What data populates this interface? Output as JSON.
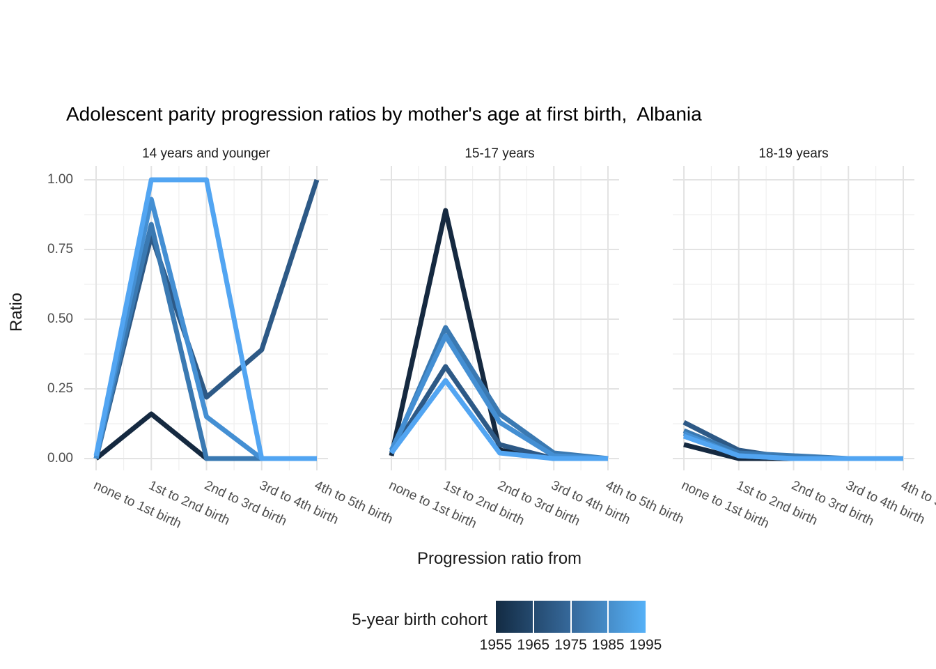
{
  "title": "Adolescent parity progression ratios by mother's age at first birth,  Albania",
  "y_axis": {
    "title": "Ratio",
    "tick_labels": [
      "1.00",
      "0.75",
      "0.50",
      "0.25",
      "0.00"
    ],
    "tick_values": [
      1.0,
      0.75,
      0.5,
      0.25,
      0.0
    ]
  },
  "x_axis": {
    "title": "Progression ratio from"
  },
  "legend": {
    "title": "5-year birth cohort",
    "labels": [
      "1955",
      "1965",
      "1975",
      "1985",
      "1995"
    ],
    "gradient_low": "#132B43",
    "gradient_mid": "#36699B",
    "gradient_high": "#56B1F7"
  },
  "chart_data": {
    "type": "line",
    "title": "Adolescent parity progression ratios by mother's age at first birth,  Albania",
    "xlabel": "Progression ratio from",
    "ylabel": "Ratio",
    "ylim": [
      0,
      1
    ],
    "grid": "on",
    "legend_position": "bottom",
    "colorbar": {
      "label": "5-year birth cohort",
      "min": 1955,
      "max": 1995,
      "low_color": "#132B43",
      "high_color": "#56B1F7"
    },
    "categories": [
      "none to 1st birth",
      "1st to 2nd birth",
      "2nd to 3rd birth",
      "3rd to 4th birth",
      "4th to 5th birth"
    ],
    "facets": [
      {
        "label": "14 years and younger",
        "series": [
          {
            "name": "1955",
            "color": "#152940",
            "values": [
              0.0,
              0.16,
              0.0,
              0.0,
              0.0
            ]
          },
          {
            "name": "1965",
            "color": "#2D5986",
            "values": [
              0.0,
              0.8,
              0.22,
              0.39,
              1.0
            ]
          },
          {
            "name": "1975",
            "color": "#3A79B2",
            "values": [
              0.0,
              0.84,
              0.0,
              0.0,
              0.0
            ]
          },
          {
            "name": "1985",
            "color": "#448FD3",
            "values": [
              0.0,
              0.93,
              0.15,
              0.0,
              0.0
            ]
          },
          {
            "name": "1995",
            "color": "#52A5F2",
            "values": [
              0.01,
              1.0,
              1.0,
              0.0,
              0.0
            ]
          }
        ]
      },
      {
        "label": "15-17 years",
        "series": [
          {
            "name": "1955",
            "color": "#152940",
            "values": [
              0.01,
              0.89,
              0.03,
              0.0,
              0.0
            ]
          },
          {
            "name": "1965",
            "color": "#2D5986",
            "values": [
              0.02,
              0.33,
              0.05,
              0.0,
              0.0
            ]
          },
          {
            "name": "1975",
            "color": "#3A79B2",
            "values": [
              0.02,
              0.47,
              0.16,
              0.02,
              0.0
            ]
          },
          {
            "name": "1985",
            "color": "#448FD3",
            "values": [
              0.03,
              0.44,
              0.13,
              0.01,
              0.0
            ]
          },
          {
            "name": "1995",
            "color": "#52A5F2",
            "values": [
              0.02,
              0.28,
              0.02,
              0.0,
              0.0
            ]
          }
        ]
      },
      {
        "label": "18-19 years",
        "series": [
          {
            "name": "1955",
            "color": "#152940",
            "values": [
              0.05,
              0.0,
              0.0,
              0.0,
              0.0
            ]
          },
          {
            "name": "1965",
            "color": "#2D5986",
            "values": [
              0.13,
              0.03,
              0.0,
              0.0,
              0.0
            ]
          },
          {
            "name": "1975",
            "color": "#3A79B2",
            "values": [
              0.1,
              0.02,
              0.01,
              0.0,
              0.0
            ]
          },
          {
            "name": "1985",
            "color": "#448FD3",
            "values": [
              0.09,
              0.01,
              0.0,
              0.0,
              0.0
            ]
          },
          {
            "name": "1995",
            "color": "#52A5F2",
            "values": [
              0.08,
              0.01,
              0.0,
              0.0,
              0.0
            ]
          }
        ]
      }
    ]
  }
}
